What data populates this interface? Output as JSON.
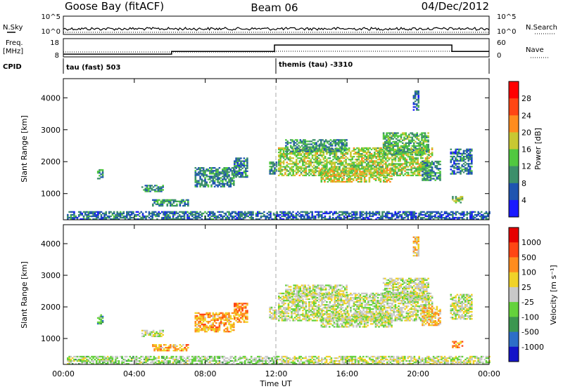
{
  "header": {
    "title_left": "Goose Bay (fitACF)",
    "title_center": "Beam 06",
    "title_right": "04/Dec/2012"
  },
  "noise_panel": {
    "left_label": "N.Sky",
    "right_label": "N.Search",
    "tick_top": "10^5",
    "tick_bottom": "10^0",
    "right_tick_top": "10^5",
    "right_tick_bottom": "10^0"
  },
  "freq_panel": {
    "left_label_1": "Freq.",
    "left_label_2": "[MHz]",
    "tick_top": "18",
    "tick_bottom": "8",
    "right_label": "Nave",
    "right_tick_top": "60",
    "right_tick_bottom": "0"
  },
  "cpid_panel": {
    "label": "CPID",
    "segment_1": "tau (fast) 503",
    "segment_2": "themis (tau) -3310"
  },
  "chart_data": [
    {
      "type": "heatmap",
      "panel": "power",
      "ylabel": "Slant Range [km]",
      "yticks": [
        "1000",
        "2000",
        "3000",
        "4000"
      ],
      "ylim": [
        180,
        4600
      ],
      "colorbar_label": "Power [dB]",
      "colorbar_ticks": [
        "4",
        "8",
        "12",
        "16",
        "20",
        "24",
        "28"
      ],
      "colors": [
        "#1a1aff",
        "#1f55b0",
        "#3d8f6b",
        "#51c840",
        "#c8c832",
        "#ff8c1e",
        "#ff4614",
        "#ff0000"
      ],
      "regions": [
        {
          "t0": 0.2,
          "t1": 12.0,
          "r0": 180,
          "r1": 450,
          "level": 1.5
        },
        {
          "t0": 1.9,
          "t1": 2.2,
          "r0": 1450,
          "r1": 1750,
          "level": 2
        },
        {
          "t0": 4.4,
          "t1": 5.6,
          "r0": 1050,
          "r1": 1250,
          "level": 2
        },
        {
          "t0": 5.0,
          "t1": 7.0,
          "r0": 600,
          "r1": 800,
          "level": 2
        },
        {
          "t0": 7.4,
          "t1": 9.6,
          "r0": 1200,
          "r1": 1800,
          "level": 1.8
        },
        {
          "t0": 9.6,
          "t1": 10.4,
          "r0": 1500,
          "r1": 2100,
          "level": 1.6
        },
        {
          "t0": 11.6,
          "t1": 12.0,
          "r0": 1600,
          "r1": 2000,
          "level": 2
        },
        {
          "t0": 12.1,
          "t1": 20.8,
          "r0": 1550,
          "r1": 2450,
          "level": 3.5
        },
        {
          "t0": 14.5,
          "t1": 18.5,
          "r0": 1350,
          "r1": 1800,
          "level": 4
        },
        {
          "t0": 12.5,
          "t1": 16.0,
          "r0": 2300,
          "r1": 2700,
          "level": 2.2
        },
        {
          "t0": 18.0,
          "t1": 20.6,
          "r0": 2200,
          "r1": 2900,
          "level": 2.6
        },
        {
          "t0": 20.2,
          "t1": 21.2,
          "r0": 1400,
          "r1": 2000,
          "level": 2
        },
        {
          "t0": 21.8,
          "t1": 23.0,
          "r0": 1600,
          "r1": 2400,
          "level": 1.5
        },
        {
          "t0": 21.9,
          "t1": 22.5,
          "r0": 700,
          "r1": 900,
          "level": 3
        },
        {
          "t0": 12.0,
          "t1": 24.0,
          "r0": 180,
          "r1": 450,
          "level": 1.2
        },
        {
          "t0": 19.7,
          "t1": 20.0,
          "r0": 3600,
          "r1": 4200,
          "level": 1.5
        }
      ]
    },
    {
      "type": "heatmap",
      "panel": "velocity",
      "ylabel": "Slant Range [km]",
      "yticks": [
        "1000",
        "2000",
        "3000",
        "4000"
      ],
      "ylim": [
        180,
        4600
      ],
      "colorbar_label": "Velocity [m s⁻¹]",
      "colorbar_ticks": [
        "1000",
        "500",
        "100",
        "25",
        "-25",
        "-100",
        "-500",
        "-1000"
      ],
      "colors": [
        "#1414c8",
        "#2d6ec8",
        "#3c9650",
        "#64d23c",
        "#c8c8c8",
        "#f0d228",
        "#ff8c1e",
        "#ff4614",
        "#e60000"
      ],
      "regions": [
        {
          "t0": 0.2,
          "t1": 12.0,
          "r0": 180,
          "r1": 450,
          "level": 3.5
        },
        {
          "t0": 1.9,
          "t1": 2.2,
          "r0": 1450,
          "r1": 1750,
          "level": 2.5
        },
        {
          "t0": 4.4,
          "t1": 5.6,
          "r0": 1050,
          "r1": 1250,
          "level": 4
        },
        {
          "t0": 5.0,
          "t1": 7.0,
          "r0": 600,
          "r1": 800,
          "level": 5.5
        },
        {
          "t0": 7.4,
          "t1": 9.6,
          "r0": 1200,
          "r1": 1800,
          "level": 5.5
        },
        {
          "t0": 9.6,
          "t1": 10.4,
          "r0": 1500,
          "r1": 2100,
          "level": 6
        },
        {
          "t0": 11.6,
          "t1": 12.0,
          "r0": 1600,
          "r1": 2000,
          "level": 4
        },
        {
          "t0": 12.1,
          "t1": 20.8,
          "r0": 1550,
          "r1": 2450,
          "level": 4
        },
        {
          "t0": 14.5,
          "t1": 18.5,
          "r0": 1350,
          "r1": 1800,
          "level": 4
        },
        {
          "t0": 12.5,
          "t1": 16.0,
          "r0": 2300,
          "r1": 2700,
          "level": 4
        },
        {
          "t0": 18.0,
          "t1": 20.6,
          "r0": 2200,
          "r1": 2900,
          "level": 4
        },
        {
          "t0": 20.2,
          "t1": 21.2,
          "r0": 1400,
          "r1": 2000,
          "level": 5
        },
        {
          "t0": 21.8,
          "t1": 23.0,
          "r0": 1600,
          "r1": 2400,
          "level": 4
        },
        {
          "t0": 21.9,
          "t1": 22.5,
          "r0": 700,
          "r1": 900,
          "level": 6
        },
        {
          "t0": 12.0,
          "t1": 24.0,
          "r0": 180,
          "r1": 450,
          "level": 4
        },
        {
          "t0": 19.7,
          "t1": 20.0,
          "r0": 3600,
          "r1": 4200,
          "level": 5
        }
      ]
    }
  ],
  "time_axis": {
    "label": "Time UT",
    "ticks": [
      "00:00",
      "04:00",
      "08:00",
      "12:00",
      "16:00",
      "20:00",
      "00:00"
    ],
    "range_hours": [
      0,
      24
    ]
  },
  "freq_line": {
    "values": [
      {
        "t": 0,
        "v": 9.5
      },
      {
        "t": 6.1,
        "v": 9.5
      },
      {
        "t": 6.1,
        "v": 11
      },
      {
        "t": 11.9,
        "v": 11
      },
      {
        "t": 11.9,
        "v": 14.5
      },
      {
        "t": 21.9,
        "v": 14.5
      },
      {
        "t": 21.9,
        "v": 11
      },
      {
        "t": 24,
        "v": 11
      }
    ],
    "vmin": 8,
    "vmax": 18
  }
}
